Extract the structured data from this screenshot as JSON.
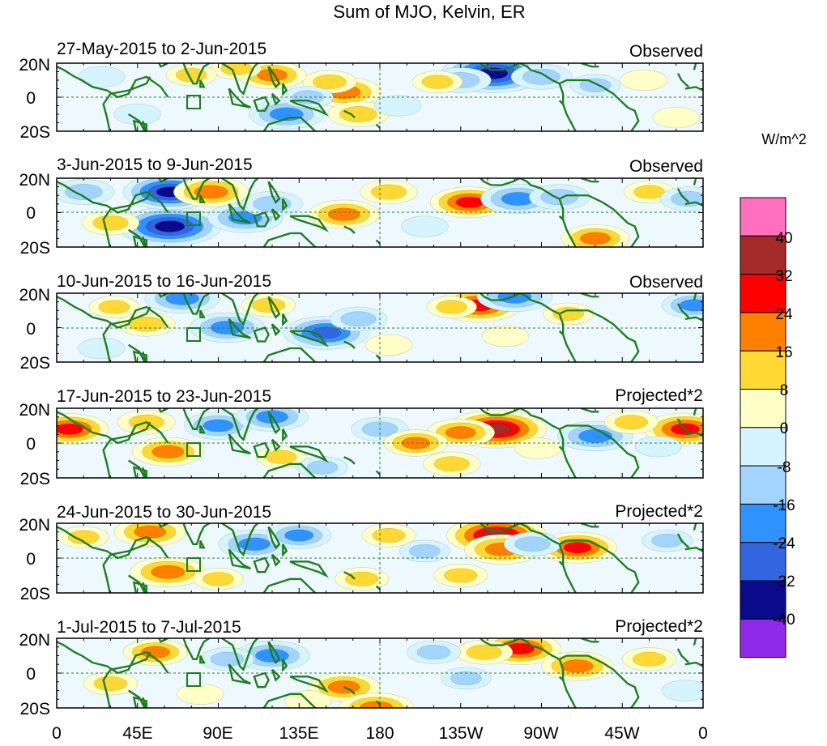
{
  "title": "Sum of MJO, Kelvin, ER",
  "colorbar": {
    "unit": "W/m^2",
    "ticks": [
      "40",
      "32",
      "24",
      "16",
      "8",
      "0",
      "-8",
      "-16",
      "-24",
      "-32",
      "-40"
    ],
    "colors_top_to_bottom": [
      "#ff6fbf",
      "#a52a2a",
      "#ff0000",
      "#ff7f00",
      "#ffd833",
      "#ffffc8",
      "#d6f4ff",
      "#a3d4ff",
      "#2f93ff",
      "#3465e0",
      "#0a0a8c",
      "#8f2ae8"
    ]
  },
  "lat_labels": [
    "20N",
    "0",
    "20S"
  ],
  "lon_labels": [
    "0",
    "45E",
    "90E",
    "135E",
    "180",
    "135W",
    "90W",
    "45W",
    "0"
  ],
  "panels": [
    {
      "period": "27-May-2015 to 2-Jun-2015",
      "status": "Observed"
    },
    {
      "period": "3-Jun-2015 to 9-Jun-2015",
      "status": "Observed"
    },
    {
      "period": "10-Jun-2015 to 16-Jun-2015",
      "status": "Observed"
    },
    {
      "period": "17-Jun-2015 to 23-Jun-2015",
      "status": "Projected*2"
    },
    {
      "period": "24-Jun-2015 to 30-Jun-2015",
      "status": "Projected*2"
    },
    {
      "period": "1-Jul-2015 to 7-Jul-2015",
      "status": "Projected*2"
    }
  ],
  "anomaly_blobs": [
    [
      {
        "lon": 160,
        "lat": 3,
        "v": 24
      },
      {
        "lon": 152,
        "lat": 9,
        "v": 12
      },
      {
        "lon": 168,
        "lat": -10,
        "v": 16
      },
      {
        "lon": 120,
        "lat": 13,
        "v": 20
      },
      {
        "lon": 100,
        "lat": 17,
        "v": 10
      },
      {
        "lon": 75,
        "lat": 13,
        "v": 10
      },
      {
        "lon": 243,
        "lat": 14,
        "v": -40
      },
      {
        "lon": 225,
        "lat": 10,
        "v": -16
      },
      {
        "lon": 270,
        "lat": 12,
        "v": -16
      },
      {
        "lon": 212,
        "lat": 9,
        "v": 10
      },
      {
        "lon": 128,
        "lat": -10,
        "v": -24
      },
      {
        "lon": 140,
        "lat": 0,
        "v": -10
      },
      {
        "lon": 25,
        "lat": 12,
        "v": -8
      },
      {
        "lon": 45,
        "lat": -10,
        "v": -8
      },
      {
        "lon": 300,
        "lat": 7,
        "v": -10
      },
      {
        "lon": 327,
        "lat": 10,
        "v": 8
      },
      {
        "lon": 345,
        "lat": -12,
        "v": 8
      },
      {
        "lon": 190,
        "lat": -5,
        "v": -8
      }
    ],
    [
      {
        "lon": 63,
        "lat": -8,
        "v": -40
      },
      {
        "lon": 63,
        "lat": 12,
        "v": -34
      },
      {
        "lon": 86,
        "lat": 12,
        "v": 24
      },
      {
        "lon": 105,
        "lat": -3,
        "v": -24
      },
      {
        "lon": 120,
        "lat": 5,
        "v": -16
      },
      {
        "lon": 160,
        "lat": -1,
        "v": 22
      },
      {
        "lon": 185,
        "lat": 12,
        "v": 14
      },
      {
        "lon": 230,
        "lat": 6,
        "v": 26
      },
      {
        "lon": 257,
        "lat": 8,
        "v": -24
      },
      {
        "lon": 280,
        "lat": 9,
        "v": -16
      },
      {
        "lon": 300,
        "lat": -15,
        "v": 20
      },
      {
        "lon": 330,
        "lat": 12,
        "v": 10
      },
      {
        "lon": 30,
        "lat": -6,
        "v": 14
      },
      {
        "lon": 15,
        "lat": 12,
        "v": -16
      },
      {
        "lon": 205,
        "lat": -8,
        "v": -8
      },
      {
        "lon": 352,
        "lat": 8,
        "v": -14
      }
    ],
    [
      {
        "lon": 235,
        "lat": 13,
        "v": 30
      },
      {
        "lon": 255,
        "lat": 18,
        "v": -24
      },
      {
        "lon": 220,
        "lat": 12,
        "v": 10
      },
      {
        "lon": 70,
        "lat": 17,
        "v": -24
      },
      {
        "lon": 95,
        "lat": 0,
        "v": -24
      },
      {
        "lon": 150,
        "lat": -3,
        "v": -30
      },
      {
        "lon": 168,
        "lat": 5,
        "v": -14
      },
      {
        "lon": 50,
        "lat": 2,
        "v": 14
      },
      {
        "lon": 32,
        "lat": 12,
        "v": 10
      },
      {
        "lon": 118,
        "lat": 13,
        "v": 12
      },
      {
        "lon": 285,
        "lat": 8,
        "v": 10
      },
      {
        "lon": 355,
        "lat": 13,
        "v": -18
      },
      {
        "lon": 250,
        "lat": -5,
        "v": 8
      },
      {
        "lon": 25,
        "lat": -12,
        "v": -8
      },
      {
        "lon": 185,
        "lat": -10,
        "v": 8
      }
    ],
    [
      {
        "lon": 245,
        "lat": 8,
        "v": 38
      },
      {
        "lon": 225,
        "lat": 6,
        "v": 20
      },
      {
        "lon": 62,
        "lat": -5,
        "v": 22
      },
      {
        "lon": 7,
        "lat": 8,
        "v": 26
      },
      {
        "lon": 50,
        "lat": 12,
        "v": 14
      },
      {
        "lon": 90,
        "lat": 10,
        "v": -20
      },
      {
        "lon": 120,
        "lat": 15,
        "v": -22
      },
      {
        "lon": 180,
        "lat": 8,
        "v": -14
      },
      {
        "lon": 200,
        "lat": 0,
        "v": 18
      },
      {
        "lon": 300,
        "lat": 4,
        "v": -24
      },
      {
        "lon": 350,
        "lat": 8,
        "v": 28
      },
      {
        "lon": 320,
        "lat": 12,
        "v": 12
      },
      {
        "lon": 125,
        "lat": -8,
        "v": 10
      },
      {
        "lon": 148,
        "lat": -14,
        "v": -10
      },
      {
        "lon": 268,
        "lat": -3,
        "v": 8
      },
      {
        "lon": 220,
        "lat": -12,
        "v": 14
      },
      {
        "lon": 335,
        "lat": -2,
        "v": -8
      }
    ],
    [
      {
        "lon": 245,
        "lat": 13,
        "v": 38
      },
      {
        "lon": 248,
        "lat": 5,
        "v": 24
      },
      {
        "lon": 62,
        "lat": -8,
        "v": 24
      },
      {
        "lon": 52,
        "lat": 15,
        "v": 22
      },
      {
        "lon": 15,
        "lat": 12,
        "v": 10
      },
      {
        "lon": 110,
        "lat": 8,
        "v": -22
      },
      {
        "lon": 135,
        "lat": 13,
        "v": -18
      },
      {
        "lon": 290,
        "lat": 6,
        "v": 26
      },
      {
        "lon": 265,
        "lat": 8,
        "v": -14
      },
      {
        "lon": 185,
        "lat": 13,
        "v": 12
      },
      {
        "lon": 170,
        "lat": -12,
        "v": 12
      },
      {
        "lon": 225,
        "lat": -10,
        "v": 12
      },
      {
        "lon": 340,
        "lat": 10,
        "v": -10
      },
      {
        "lon": 90,
        "lat": -12,
        "v": 10
      },
      {
        "lon": 205,
        "lat": 4,
        "v": -10
      }
    ],
    [
      {
        "lon": 160,
        "lat": -8,
        "v": 22
      },
      {
        "lon": 178,
        "lat": -20,
        "v": 24
      },
      {
        "lon": 120,
        "lat": 10,
        "v": -24
      },
      {
        "lon": 95,
        "lat": 8,
        "v": -12
      },
      {
        "lon": 258,
        "lat": 14,
        "v": 28
      },
      {
        "lon": 238,
        "lat": 12,
        "v": 14
      },
      {
        "lon": 290,
        "lat": 4,
        "v": 22
      },
      {
        "lon": 55,
        "lat": 12,
        "v": 18
      },
      {
        "lon": 30,
        "lat": -6,
        "v": 12
      },
      {
        "lon": 80,
        "lat": -12,
        "v": 8
      },
      {
        "lon": 210,
        "lat": 12,
        "v": -12
      },
      {
        "lon": 228,
        "lat": -3,
        "v": -10
      },
      {
        "lon": 330,
        "lat": 8,
        "v": 12
      },
      {
        "lon": 350,
        "lat": -10,
        "v": -8
      },
      {
        "lon": 140,
        "lat": -16,
        "v": 8
      }
    ]
  ]
}
